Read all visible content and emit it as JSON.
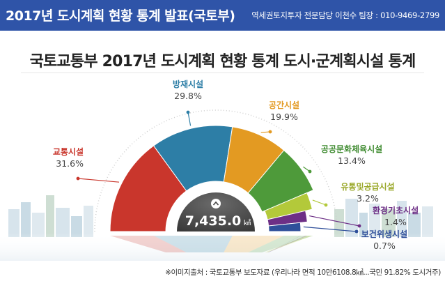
{
  "header": {
    "title": "2017년 도시계획 현황 통계 발표(국토부)",
    "contact": "역세권토지투자 전문담당 이천수 팀장 : 010-9469-2799"
  },
  "chart_data": {
    "type": "pie",
    "title": "국토교통부 2017년 도시계획 현황 통계 도시·군계획시설 통계",
    "center_value": "7,435.0",
    "center_unit": "㎢",
    "center_icon": "chevron-up-icon",
    "unit": "%",
    "slices": [
      {
        "name": "교통시설",
        "value": "31.6%",
        "share": 31.6,
        "color": "#c9362c",
        "label_color": "#c9362c"
      },
      {
        "name": "방재시설",
        "value": "29.8%",
        "share": 29.8,
        "color": "#2d7ea6",
        "label_color": "#2d7ea6"
      },
      {
        "name": "공간시설",
        "value": "19.9%",
        "share": 19.9,
        "color": "#e39a22",
        "label_color": "#e39a22"
      },
      {
        "name": "공공문화체육시설",
        "value": "13.4%",
        "share": 13.4,
        "color": "#4e9a3a",
        "label_color": "#3d8a2e"
      },
      {
        "name": "유통및공급시설",
        "value": "3.2%",
        "share": 3.2,
        "color": "#b3c93a",
        "label_color": "#9aa82a"
      },
      {
        "name": "환경기초시설",
        "value": "1.4%",
        "share": 1.4,
        "color": "#6d2f86",
        "label_color": "#6d2f86"
      },
      {
        "name": "보건위생시설",
        "value": "0.7%",
        "share": 0.7,
        "color": "#2f4f9a",
        "label_color": "#2f4f9a"
      }
    ]
  },
  "footer": {
    "source": "※이미지출처 : 국토교통부 보도자료 (우리나라 면적 10만6108.8㎢...국민 91.82% 도시거주)"
  }
}
